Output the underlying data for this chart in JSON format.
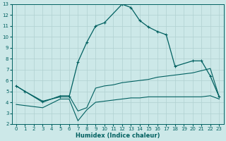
{
  "xlabel": "Humidex (Indice chaleur)",
  "ylabel": "",
  "xlim": [
    -0.5,
    23.5
  ],
  "ylim": [
    2,
    13
  ],
  "yticks": [
    2,
    3,
    4,
    5,
    6,
    7,
    8,
    9,
    10,
    11,
    12,
    13
  ],
  "xticks": [
    0,
    1,
    2,
    3,
    4,
    5,
    6,
    7,
    8,
    9,
    10,
    11,
    12,
    13,
    14,
    15,
    16,
    17,
    18,
    19,
    20,
    21,
    22,
    23
  ],
  "background_color": "#cce8e8",
  "grid_color": "#b0d0d0",
  "line_color": "#006060",
  "line1_x": [
    0,
    1,
    3,
    5,
    6,
    7,
    8,
    9,
    10,
    12,
    13,
    14,
    15,
    16,
    17,
    18,
    20,
    21,
    22,
    23
  ],
  "line1_y": [
    5.5,
    5.0,
    4.1,
    4.5,
    4.5,
    7.7,
    9.5,
    11.0,
    11.3,
    13.0,
    12.7,
    11.5,
    10.9,
    10.5,
    10.2,
    7.3,
    7.8,
    7.8,
    6.4,
    4.5
  ],
  "line2_x": [
    0,
    3,
    5,
    6,
    7,
    8,
    9,
    10,
    11,
    12,
    13,
    14,
    15,
    16,
    17,
    18,
    19,
    20,
    21,
    22,
    23
  ],
  "line2_y": [
    5.5,
    4.0,
    4.6,
    4.6,
    3.2,
    3.5,
    5.3,
    5.5,
    5.6,
    5.8,
    5.9,
    6.0,
    6.1,
    6.3,
    6.4,
    6.5,
    6.6,
    6.7,
    6.9,
    7.1,
    4.5
  ],
  "line3_x": [
    0,
    3,
    5,
    6,
    7,
    8,
    9,
    10,
    11,
    12,
    13,
    14,
    15,
    16,
    17,
    18,
    19,
    20,
    21,
    22,
    23
  ],
  "line3_y": [
    3.8,
    3.5,
    4.3,
    4.3,
    2.3,
    3.3,
    4.0,
    4.1,
    4.2,
    4.3,
    4.4,
    4.4,
    4.5,
    4.5,
    4.5,
    4.5,
    4.5,
    4.5,
    4.5,
    4.6,
    4.3
  ]
}
